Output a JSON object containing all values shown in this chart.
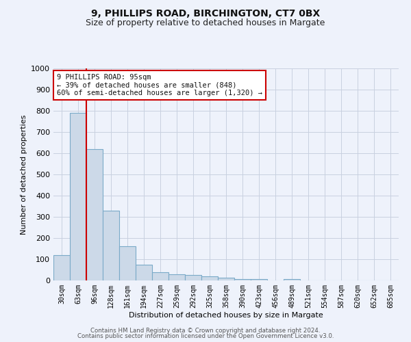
{
  "title1": "9, PHILLIPS ROAD, BIRCHINGTON, CT7 0BX",
  "title2": "Size of property relative to detached houses in Margate",
  "xlabel": "Distribution of detached houses by size in Margate",
  "ylabel": "Number of detached properties",
  "categories": [
    "30sqm",
    "63sqm",
    "96sqm",
    "128sqm",
    "161sqm",
    "194sqm",
    "227sqm",
    "259sqm",
    "292sqm",
    "325sqm",
    "358sqm",
    "390sqm",
    "423sqm",
    "456sqm",
    "489sqm",
    "521sqm",
    "554sqm",
    "587sqm",
    "620sqm",
    "652sqm",
    "685sqm"
  ],
  "values": [
    120,
    790,
    620,
    330,
    160,
    75,
    40,
    28,
    25,
    20,
    13,
    8,
    8,
    0,
    8,
    0,
    0,
    0,
    0,
    0,
    0
  ],
  "bar_color": "#ccd9e8",
  "bar_edge_color": "#7aaac8",
  "vline_color": "#cc0000",
  "ylim": [
    0,
    1000
  ],
  "annotation_line1": "9 PHILLIPS ROAD: 95sqm",
  "annotation_line2": "← 39% of detached houses are smaller (848)",
  "annotation_line3": "60% of semi-detached houses are larger (1,320) →",
  "annotation_box_color": "#cc0000",
  "annotation_box_bg": "#ffffff",
  "footer1": "Contains HM Land Registry data © Crown copyright and database right 2024.",
  "footer2": "Contains public sector information licensed under the Open Government Licence v3.0.",
  "bg_color": "#eef2fb",
  "grid_color": "#c8d0e0"
}
